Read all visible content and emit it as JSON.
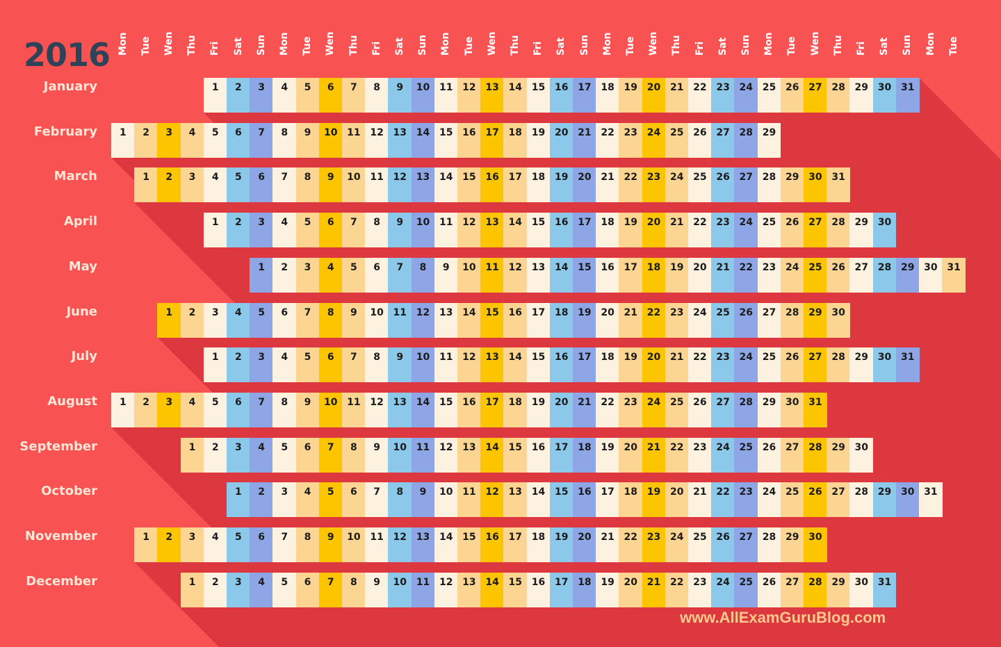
{
  "year": "2016",
  "weekday_headers": [
    "Mon",
    "Tue",
    "Wen",
    "Thu",
    "Fri",
    "Sat",
    "Sun",
    "Mon",
    "Tue",
    "Wen",
    "Thu",
    "Fri",
    "Sat",
    "Sun",
    "Mon",
    "Tue",
    "Wen",
    "Thu",
    "Fri",
    "Sat",
    "Sun",
    "Mon",
    "Tue",
    "Wen",
    "Thu",
    "Fri",
    "Sat",
    "Sun",
    "Mon",
    "Tue",
    "Wen",
    "Thu",
    "Fri",
    "Sat",
    "Sun",
    "Mon",
    "Tue"
  ],
  "weekday_colors": [
    "#fdf1df",
    "#fdd592",
    "#fdc400",
    "#fdd592",
    "#fdf1df",
    "#8cc8ea",
    "#8ea6e6"
  ],
  "colors": {
    "background": "#f95253",
    "shadow": "#dd3740",
    "year": "#2f4358",
    "watermark": "#fdc98c"
  },
  "months": [
    {
      "name": "January",
      "start_weekday": "Fri",
      "start_offset": 4,
      "days": 31
    },
    {
      "name": "February",
      "start_weekday": "Mon",
      "start_offset": 0,
      "days": 29
    },
    {
      "name": "March",
      "start_weekday": "Tue",
      "start_offset": 1,
      "days": 31
    },
    {
      "name": "April",
      "start_weekday": "Fri",
      "start_offset": 4,
      "days": 30
    },
    {
      "name": "May",
      "start_weekday": "Sun",
      "start_offset": 6,
      "days": 31
    },
    {
      "name": "June",
      "start_weekday": "Wen",
      "start_offset": 2,
      "days": 30
    },
    {
      "name": "July",
      "start_weekday": "Fri",
      "start_offset": 4,
      "days": 31
    },
    {
      "name": "August",
      "start_weekday": "Mon",
      "start_offset": 0,
      "days": 31
    },
    {
      "name": "September",
      "start_weekday": "Thu",
      "start_offset": 3,
      "days": 30
    },
    {
      "name": "October",
      "start_weekday": "Sat",
      "start_offset": 5,
      "days": 31
    },
    {
      "name": "November",
      "start_weekday": "Tue",
      "start_offset": 1,
      "days": 30
    },
    {
      "name": "December",
      "start_weekday": "Thu",
      "start_offset": 3,
      "days": 31
    }
  ],
  "watermark": "www.AllExamGuruBlog.com"
}
